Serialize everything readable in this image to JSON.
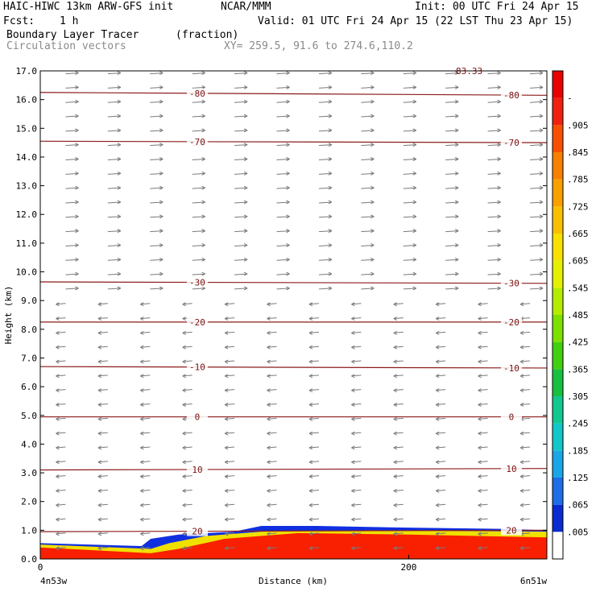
{
  "header": {
    "title": "HAIC-HIWC 13km ARW-GFS init",
    "org": "NCAR/MMM",
    "init": "Init: 00 UTC Fri 24 Apr 15",
    "fcst_label": "Fcst:",
    "fcst_value": "1 h",
    "valid": "Valid: 01 UTC Fri 24 Apr 15 (22 LST Thu 23 Apr 15)",
    "field_name": "Boundary Layer Tracer",
    "field_units": "(fraction)",
    "vector_label": "Circulation vectors",
    "xy_label": "XY= 259.5, 91.6 to 274.6,110.2"
  },
  "chart_data": {
    "type": "heatmap",
    "xlabel": "Distance (km)",
    "ylabel": "Height (km)",
    "xlim": [
      0,
      275
    ],
    "ylim": [
      0,
      17
    ],
    "x_ticks": [
      0,
      200
    ],
    "x_tick_labels": [
      "0",
      "200"
    ],
    "x_end_labels": {
      "left": "4n53w",
      "right": "6n51w"
    },
    "y_ticks": [
      0,
      1,
      2,
      3,
      4,
      5,
      6,
      7,
      8,
      9,
      10,
      11,
      12,
      13,
      14,
      15,
      16,
      17
    ],
    "y_tick_labels": [
      "0.0",
      "1.0",
      "2.0",
      "3.0",
      "4.0",
      "5.0",
      "6.0",
      "7.0",
      "8.0",
      "9.0",
      "10.0",
      "11.0",
      "12.0",
      "13.0",
      "14.0",
      "15.0",
      "16.0",
      "17.0"
    ],
    "colorbar": {
      "labels": [
        ".005",
        ".065",
        ".125",
        ".185",
        ".245",
        ".305",
        ".365",
        ".425",
        ".485",
        ".545",
        ".605",
        ".665",
        ".725",
        ".785",
        ".845",
        ".905",
        "-"
      ],
      "colors": [
        "#ffffff",
        "#0a2bd0",
        "#1d6de6",
        "#1aa7e8",
        "#10c8c8",
        "#10c890",
        "#18c040",
        "#40d010",
        "#7ce000",
        "#b4ec00",
        "#e4f000",
        "#f8e000",
        "#f8c000",
        "#f8a000",
        "#f88000",
        "#f85000",
        "#f02010",
        "#e80000"
      ]
    },
    "isotherms": [
      {
        "value": -80,
        "height_left": 16.25,
        "height_right": 16.15,
        "label": "-80"
      },
      {
        "value": -70,
        "height_left": 14.55,
        "height_right": 14.5,
        "label": "-70"
      },
      {
        "value": -30,
        "height_left": 9.65,
        "height_right": 9.6,
        "label": "-30"
      },
      {
        "value": -20,
        "height_left": 8.25,
        "height_right": 8.25,
        "label": "-20"
      },
      {
        "value": -10,
        "height_left": 6.7,
        "height_right": 6.65,
        "label": "-10"
      },
      {
        "value": 0,
        "height_left": 4.95,
        "height_right": 4.95,
        "label": "0"
      },
      {
        "value": 10,
        "height_left": 3.1,
        "height_right": 3.15,
        "label": "10"
      },
      {
        "value": 20,
        "height_left": 0.95,
        "height_right": 1.0,
        "label": "20"
      }
    ],
    "tracer_layers": [
      {
        "value": 0.005,
        "top": [
          [
            0,
            0.55
          ],
          [
            55,
            0.45
          ],
          [
            60,
            0.7
          ],
          [
            75,
            0.85
          ],
          [
            105,
            0.95
          ],
          [
            120,
            1.15
          ],
          [
            150,
            1.15
          ],
          [
            190,
            1.1
          ],
          [
            250,
            1.05
          ],
          [
            275,
            1.0
          ]
        ]
      },
      {
        "value": 0.485,
        "top": [
          [
            0,
            0.5
          ],
          [
            60,
            0.35
          ],
          [
            70,
            0.55
          ],
          [
            90,
            0.8
          ],
          [
            120,
            0.95
          ],
          [
            180,
            1.0
          ],
          [
            275,
            0.95
          ]
        ]
      },
      {
        "value": 0.905,
        "top": [
          [
            0,
            0.4
          ],
          [
            60,
            0.2
          ],
          [
            75,
            0.35
          ],
          [
            100,
            0.7
          ],
          [
            140,
            0.9
          ],
          [
            200,
            0.85
          ],
          [
            275,
            0.75
          ]
        ]
      }
    ],
    "vectors": {
      "upper_direction": "east",
      "lower_direction": "west",
      "reversal_height": 9.2
    },
    "top_partial_label": "83.33"
  }
}
